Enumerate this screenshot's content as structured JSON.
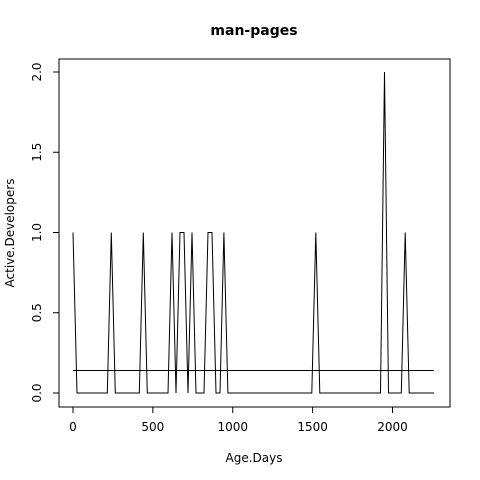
{
  "chart_data": {
    "type": "line",
    "title": "man-pages",
    "xlabel": "Age.Days",
    "ylabel": "Active.Developers",
    "xlim": [
      0,
      2260
    ],
    "ylim": [
      0,
      2
    ],
    "x_ticks": [
      0,
      500,
      1000,
      1500,
      2000
    ],
    "y_ticks": [
      0.0,
      0.5,
      1.0,
      1.5,
      2.0
    ],
    "x_tick_labels": [
      "0",
      "500",
      "1000",
      "1500",
      "2000"
    ],
    "y_tick_labels": [
      "0.0",
      "0.5",
      "1.0",
      "1.5",
      "2.0"
    ],
    "grid": false,
    "series": [
      {
        "x": [
          0,
          25,
          215,
          240,
          265,
          415,
          440,
          465,
          595,
          620,
          645,
          670,
          695,
          720,
          745,
          770,
          820,
          845,
          870,
          895,
          920,
          945,
          970,
          1495,
          1520,
          1545,
          1925,
          1950,
          1975,
          2055,
          2080,
          2105,
          2260
        ],
        "y": [
          1,
          0,
          0,
          1,
          0,
          0,
          1,
          0,
          0,
          1,
          0,
          1,
          1,
          0,
          1,
          0,
          0,
          1,
          1,
          0,
          0,
          1,
          0,
          0,
          1,
          0,
          0,
          2,
          0,
          0,
          1,
          0,
          0
        ]
      }
    ],
    "reference_line": {
      "y": 0.14
    }
  }
}
